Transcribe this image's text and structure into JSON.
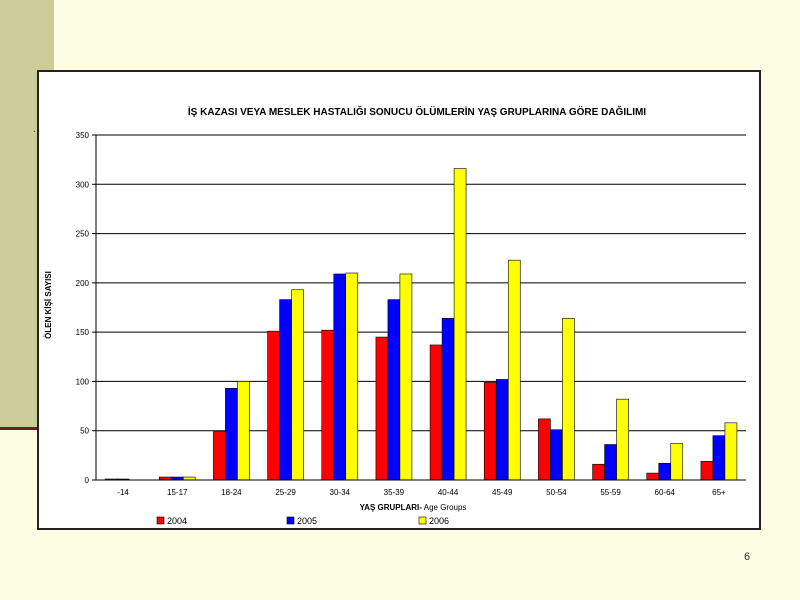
{
  "slide": {
    "page_number": "6"
  },
  "chart_data": {
    "type": "bar",
    "title": "İŞ KAZASI  VEYA MESLEK HASTALIĞI SONUCU ÖLÜMLERİN YAŞ GRUPLARINA GÖRE DAĞILIMI",
    "xlabel_main": "YAŞ GRUPLARI-",
    "xlabel_sub": " Age Groups",
    "ylabel": "ÖLEN KİŞİ SAYISI",
    "ylim": [
      0,
      350
    ],
    "yticks": [
      0,
      50,
      100,
      150,
      200,
      250,
      300,
      350
    ],
    "grid": "horizontal",
    "legend_position": "bottom",
    "categories": [
      "-14",
      "15-17",
      "18-24",
      "25-29",
      "30-34",
      "35-39",
      "40-44",
      "45-49",
      "50-54",
      "55-59",
      "60-64",
      "65+"
    ],
    "series": [
      {
        "name": "2004",
        "color": "#ff0000",
        "values": [
          1,
          3,
          49,
          151,
          152,
          145,
          137,
          99,
          62,
          16,
          7,
          19
        ]
      },
      {
        "name": "2005",
        "color": "#0000ff",
        "values": [
          1,
          3,
          93,
          183,
          209,
          183,
          164,
          102,
          51,
          36,
          17,
          45
        ]
      },
      {
        "name": "2006",
        "color": "#ffff00",
        "values": [
          0,
          3,
          100,
          193,
          210,
          209,
          316,
          223,
          164,
          82,
          37,
          58
        ]
      }
    ]
  }
}
